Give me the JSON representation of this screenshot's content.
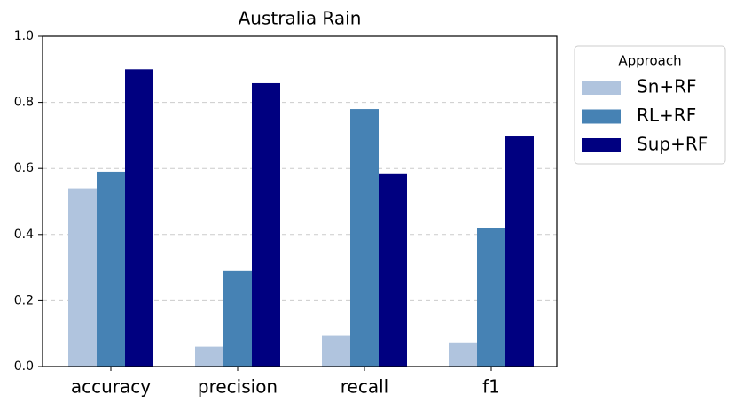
{
  "chart_data": {
    "type": "bar",
    "title": "Australia Rain",
    "categories": [
      "accuracy",
      "precision",
      "recall",
      "f1"
    ],
    "series": [
      {
        "name": "Sn+RF",
        "color": "#b0c4de",
        "values": [
          0.54,
          0.06,
          0.095,
          0.073
        ]
      },
      {
        "name": "RL+RF",
        "color": "#4682b4",
        "values": [
          0.59,
          0.29,
          0.78,
          0.42
        ]
      },
      {
        "name": "Sup+RF",
        "color": "#000080",
        "values": [
          0.9,
          0.858,
          0.585,
          0.697
        ]
      }
    ],
    "ylim": [
      0,
      1
    ],
    "yticks": [
      {
        "value": 0,
        "label": "0.0"
      },
      0.2,
      0.4,
      0.6,
      0.8,
      {
        "value": 1,
        "label": "1.0"
      }
    ],
    "grid": true,
    "legend_title": "Approach",
    "legend_position": "outside-right"
  }
}
